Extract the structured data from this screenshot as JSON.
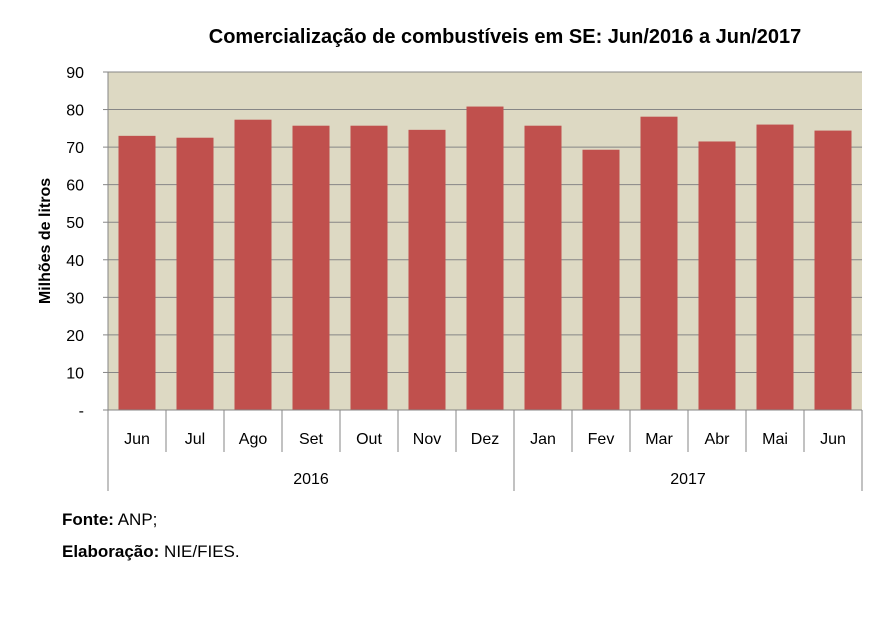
{
  "chart_data": {
    "type": "bar",
    "title": "Comercialização de combustíveis em SE: Jun/2016 a Jun/2017",
    "xlabel": "",
    "ylabel": "Milhões de litros",
    "ylim": [
      0,
      90
    ],
    "yticks": [
      0,
      10,
      20,
      30,
      40,
      50,
      60,
      70,
      80,
      90
    ],
    "ytick_labels": [
      "-",
      "10",
      "20",
      "30",
      "40",
      "50",
      "60",
      "70",
      "80",
      "90"
    ],
    "grid": true,
    "categories": [
      "Jun",
      "Jul",
      "Ago",
      "Set",
      "Out",
      "Nov",
      "Dez",
      "Jan",
      "Fev",
      "Mar",
      "Abr",
      "Mai",
      "Jun"
    ],
    "groups": [
      {
        "label": "2016",
        "count": 7
      },
      {
        "label": "2017",
        "count": 6
      }
    ],
    "values": [
      73.0,
      72.5,
      77.3,
      75.7,
      75.7,
      74.6,
      80.8,
      75.7,
      69.3,
      78.1,
      71.5,
      76.0,
      74.4
    ],
    "colors": {
      "bar": "#C0504D",
      "plot_bg": "#DDD9C3",
      "grid": "#868686"
    }
  },
  "footer": {
    "source_label": "Fonte:",
    "source_value": " ANP;",
    "credit_label": "Elaboração:",
    "credit_value": " NIE/FIES."
  }
}
